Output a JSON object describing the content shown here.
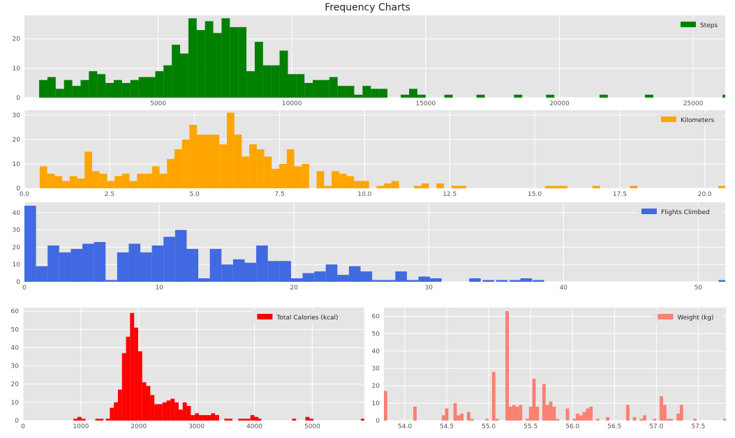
{
  "title": "Frequency Charts",
  "chart_data": [
    {
      "type": "bar",
      "title": "",
      "series_name": "Steps",
      "color": "#008000",
      "xlim": [
        0,
        26200
      ],
      "ylim": [
        0,
        28
      ],
      "xticks": [
        5000,
        10000,
        15000,
        20000,
        25000
      ],
      "yticks": [
        0,
        10,
        20
      ],
      "bin_width": 310,
      "bins": [
        [
          550,
          6
        ],
        [
          860,
          7
        ],
        [
          1170,
          3
        ],
        [
          1480,
          6
        ],
        [
          1790,
          4
        ],
        [
          2100,
          6
        ],
        [
          2410,
          9
        ],
        [
          2720,
          8
        ],
        [
          3030,
          5
        ],
        [
          3340,
          6
        ],
        [
          3650,
          5
        ],
        [
          3960,
          6
        ],
        [
          4270,
          7
        ],
        [
          4580,
          7
        ],
        [
          4890,
          9
        ],
        [
          5200,
          11
        ],
        [
          5510,
          18
        ],
        [
          5820,
          15
        ],
        [
          6130,
          27
        ],
        [
          6440,
          23
        ],
        [
          6750,
          26
        ],
        [
          7060,
          22
        ],
        [
          7370,
          27
        ],
        [
          7680,
          24
        ],
        [
          7990,
          24
        ],
        [
          8300,
          9
        ],
        [
          8610,
          19
        ],
        [
          8920,
          11
        ],
        [
          9230,
          11
        ],
        [
          9540,
          16
        ],
        [
          9850,
          8
        ],
        [
          10160,
          8
        ],
        [
          10470,
          5
        ],
        [
          10780,
          6
        ],
        [
          11090,
          6
        ],
        [
          11400,
          7
        ],
        [
          11710,
          4
        ],
        [
          12020,
          4
        ],
        [
          12330,
          1
        ],
        [
          12640,
          4
        ],
        [
          12950,
          3
        ],
        [
          13260,
          3
        ],
        [
          14070,
          1
        ],
        [
          14380,
          3
        ],
        [
          14690,
          1
        ],
        [
          15700,
          1
        ],
        [
          16900,
          1
        ],
        [
          18300,
          1
        ],
        [
          19500,
          1
        ],
        [
          21500,
          1
        ],
        [
          23200,
          1
        ],
        [
          26100,
          1
        ]
      ]
    },
    {
      "type": "bar",
      "title": "",
      "series_name": "Kilometers",
      "color": "#FFA500",
      "xlim": [
        0,
        20.6
      ],
      "ylim": [
        0,
        32
      ],
      "xticks": [
        0.0,
        2.5,
        5.0,
        7.5,
        10.0,
        12.5,
        15.0,
        17.5,
        20.0
      ],
      "xtick_labels": [
        "0.0",
        "2.5",
        "5.0",
        "7.5",
        "10.0",
        "12.5",
        "15.0",
        "17.5",
        "20.0"
      ],
      "yticks": [
        0,
        10,
        20,
        30
      ],
      "bin_width": 0.22,
      "bins": [
        [
          0.45,
          9
        ],
        [
          0.67,
          6
        ],
        [
          0.89,
          5
        ],
        [
          1.11,
          3
        ],
        [
          1.33,
          5
        ],
        [
          1.55,
          4
        ],
        [
          1.77,
          15
        ],
        [
          1.99,
          7
        ],
        [
          2.21,
          6
        ],
        [
          2.43,
          3
        ],
        [
          2.65,
          5
        ],
        [
          2.87,
          6
        ],
        [
          3.09,
          3
        ],
        [
          3.31,
          6
        ],
        [
          3.53,
          6
        ],
        [
          3.75,
          9
        ],
        [
          3.97,
          6
        ],
        [
          4.19,
          12
        ],
        [
          4.41,
          16
        ],
        [
          4.63,
          20
        ],
        [
          4.85,
          26
        ],
        [
          5.07,
          22
        ],
        [
          5.29,
          22
        ],
        [
          5.51,
          22
        ],
        [
          5.73,
          18
        ],
        [
          5.95,
          31
        ],
        [
          6.17,
          22
        ],
        [
          6.39,
          13
        ],
        [
          6.61,
          18
        ],
        [
          6.83,
          16
        ],
        [
          7.05,
          13
        ],
        [
          7.27,
          8
        ],
        [
          7.49,
          10
        ],
        [
          7.71,
          16
        ],
        [
          7.93,
          9
        ],
        [
          8.15,
          10
        ],
        [
          8.59,
          7
        ],
        [
          8.81,
          1
        ],
        [
          9.03,
          7
        ],
        [
          9.25,
          6
        ],
        [
          9.47,
          5
        ],
        [
          9.69,
          3
        ],
        [
          9.91,
          3
        ],
        [
          10.35,
          1
        ],
        [
          10.57,
          2
        ],
        [
          10.79,
          3
        ],
        [
          11.45,
          1
        ],
        [
          11.67,
          2
        ],
        [
          12.11,
          2
        ],
        [
          12.55,
          1
        ],
        [
          12.77,
          1
        ],
        [
          15.3,
          1
        ],
        [
          15.52,
          1
        ],
        [
          15.74,
          1
        ],
        [
          16.7,
          1
        ],
        [
          17.8,
          1
        ],
        [
          20.4,
          1
        ]
      ]
    },
    {
      "type": "bar",
      "title": "",
      "series_name": "Flights Climbed",
      "color": "#4169E1",
      "xlim": [
        0,
        52
      ],
      "ylim": [
        0,
        46
      ],
      "xticks": [
        0,
        10,
        20,
        30,
        40,
        50
      ],
      "yticks": [
        0,
        10,
        20,
        30,
        40
      ],
      "bin_width": 0.86,
      "bins": [
        [
          0.0,
          44
        ],
        [
          0.86,
          9
        ],
        [
          1.72,
          21
        ],
        [
          2.58,
          17
        ],
        [
          3.44,
          19
        ],
        [
          4.3,
          22
        ],
        [
          5.16,
          23
        ],
        [
          6.02,
          1
        ],
        [
          6.88,
          17
        ],
        [
          7.74,
          22
        ],
        [
          8.6,
          17
        ],
        [
          9.46,
          21
        ],
        [
          10.32,
          26
        ],
        [
          11.18,
          30
        ],
        [
          12.04,
          19
        ],
        [
          12.9,
          2
        ],
        [
          13.76,
          19
        ],
        [
          14.62,
          10
        ],
        [
          15.48,
          13
        ],
        [
          16.34,
          11
        ],
        [
          17.2,
          21
        ],
        [
          18.06,
          12
        ],
        [
          18.92,
          12
        ],
        [
          19.78,
          2
        ],
        [
          20.64,
          5
        ],
        [
          21.5,
          6
        ],
        [
          22.36,
          10
        ],
        [
          23.22,
          4
        ],
        [
          24.08,
          9
        ],
        [
          24.94,
          6
        ],
        [
          25.8,
          1
        ],
        [
          26.66,
          1
        ],
        [
          27.52,
          6
        ],
        [
          28.38,
          1
        ],
        [
          29.24,
          3
        ],
        [
          30.1,
          2
        ],
        [
          33.0,
          2
        ],
        [
          34.0,
          1
        ],
        [
          35.0,
          1
        ],
        [
          36.0,
          1
        ],
        [
          36.8,
          2
        ],
        [
          37.7,
          1
        ],
        [
          51.5,
          1
        ]
      ]
    },
    {
      "type": "bar",
      "title": "",
      "series_name": "Total Calories (kcal)",
      "color": "#FF0000",
      "xlim": [
        0,
        5900
      ],
      "ylim": [
        0,
        62
      ],
      "xticks": [
        0,
        1000,
        2000,
        3000,
        4000,
        5000
      ],
      "yticks": [
        0,
        10,
        20,
        30,
        40,
        50,
        60
      ],
      "bin_width": 70,
      "bins": [
        [
          870,
          1
        ],
        [
          940,
          2
        ],
        [
          1010,
          1
        ],
        [
          1250,
          1
        ],
        [
          1320,
          1
        ],
        [
          1430,
          1
        ],
        [
          1500,
          7
        ],
        [
          1570,
          10
        ],
        [
          1640,
          17
        ],
        [
          1710,
          37
        ],
        [
          1780,
          46
        ],
        [
          1850,
          59
        ],
        [
          1920,
          51
        ],
        [
          1990,
          38
        ],
        [
          2060,
          21
        ],
        [
          2130,
          19
        ],
        [
          2200,
          14
        ],
        [
          2270,
          9
        ],
        [
          2340,
          9
        ],
        [
          2410,
          10
        ],
        [
          2480,
          11
        ],
        [
          2550,
          12
        ],
        [
          2620,
          10
        ],
        [
          2690,
          6
        ],
        [
          2760,
          10
        ],
        [
          2830,
          8
        ],
        [
          2900,
          3
        ],
        [
          2970,
          4
        ],
        [
          3040,
          3
        ],
        [
          3110,
          3
        ],
        [
          3180,
          3
        ],
        [
          3250,
          4
        ],
        [
          3320,
          3
        ],
        [
          3480,
          1
        ],
        [
          3550,
          1
        ],
        [
          3720,
          1
        ],
        [
          3790,
          1
        ],
        [
          3860,
          1
        ],
        [
          3930,
          3
        ],
        [
          4000,
          2
        ],
        [
          4050,
          1
        ],
        [
          4650,
          1
        ],
        [
          4880,
          2
        ],
        [
          4950,
          1
        ],
        [
          5840,
          1
        ]
      ]
    },
    {
      "type": "bar",
      "title": "",
      "series_name": "Weight (kg)",
      "color": "#FA8072",
      "xlim": [
        53.75,
        57.83
      ],
      "ylim": [
        0,
        65
      ],
      "xticks": [
        54.0,
        54.5,
        55.0,
        55.5,
        56.0,
        56.5,
        57.0,
        57.5
      ],
      "xtick_labels": [
        "54.0",
        "54.5",
        "55.0",
        "55.5",
        "56.0",
        "56.5",
        "57.0",
        "57.5"
      ],
      "yticks": [
        0,
        10,
        20,
        30,
        40,
        50,
        60
      ],
      "bin_width": 0.04,
      "bins": [
        [
          53.75,
          17
        ],
        [
          54.1,
          8
        ],
        [
          54.44,
          3
        ],
        [
          54.48,
          7
        ],
        [
          54.58,
          10
        ],
        [
          54.62,
          3
        ],
        [
          54.66,
          4
        ],
        [
          54.74,
          5
        ],
        [
          54.78,
          1
        ],
        [
          54.96,
          1
        ],
        [
          55.04,
          28
        ],
        [
          55.08,
          1
        ],
        [
          55.2,
          63
        ],
        [
          55.24,
          8
        ],
        [
          55.28,
          9
        ],
        [
          55.32,
          8
        ],
        [
          55.36,
          9
        ],
        [
          55.44,
          1
        ],
        [
          55.48,
          8
        ],
        [
          55.52,
          24
        ],
        [
          55.56,
          8
        ],
        [
          55.64,
          21
        ],
        [
          55.68,
          9
        ],
        [
          55.72,
          11
        ],
        [
          55.76,
          8
        ],
        [
          55.8,
          1
        ],
        [
          55.92,
          7
        ],
        [
          56.0,
          1
        ],
        [
          56.04,
          4
        ],
        [
          56.08,
          3
        ],
        [
          56.12,
          5
        ],
        [
          56.16,
          7
        ],
        [
          56.2,
          8
        ],
        [
          56.28,
          1
        ],
        [
          56.4,
          2
        ],
        [
          56.64,
          9
        ],
        [
          56.72,
          2
        ],
        [
          56.8,
          1
        ],
        [
          56.84,
          3
        ],
        [
          56.96,
          1
        ],
        [
          57.04,
          14
        ],
        [
          57.08,
          9
        ],
        [
          57.12,
          1
        ],
        [
          57.16,
          1
        ],
        [
          57.24,
          4
        ],
        [
          57.28,
          9
        ],
        [
          57.44,
          1
        ],
        [
          57.8,
          1
        ]
      ]
    }
  ]
}
